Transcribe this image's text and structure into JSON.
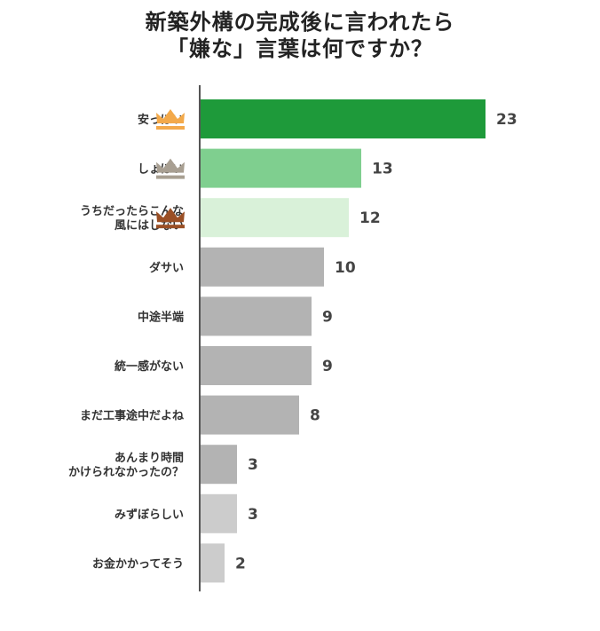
{
  "title": {
    "line1": "新築外構の完成後に言われたら",
    "line2": "「嫌な」言葉は何ですか？"
  },
  "chart_data": {
    "type": "bar",
    "orientation": "horizontal",
    "categories": [
      [
        "安っぽい"
      ],
      [
        "しょぼい"
      ],
      [
        "うちだったらこんな",
        "風にはしない"
      ],
      [
        "ダサい"
      ],
      [
        "中途半端"
      ],
      [
        "統一感がない"
      ],
      [
        "まだ工事途中だよね"
      ],
      [
        "あんまり時間",
        "かけられなかったの？"
      ],
      [
        "みずぼらしい"
      ],
      [
        "お金かかってそう"
      ]
    ],
    "values": [
      23,
      13,
      12,
      10,
      9,
      9,
      8,
      3,
      3,
      2
    ],
    "bar_colors": [
      "#1e9a3a",
      "#7fcf8f",
      "#d9f1d9",
      "#b3b3b3",
      "#b3b3b3",
      "#b3b3b3",
      "#b3b3b3",
      "#b3b3b3",
      "#cccccc",
      "#cccccc"
    ],
    "crowns": [
      {
        "rank": 1,
        "color": "#f3a94a"
      },
      {
        "rank": 2,
        "color": "#a89f92"
      },
      {
        "rank": 3,
        "color": "#9a4f25"
      }
    ],
    "grid": false
  }
}
